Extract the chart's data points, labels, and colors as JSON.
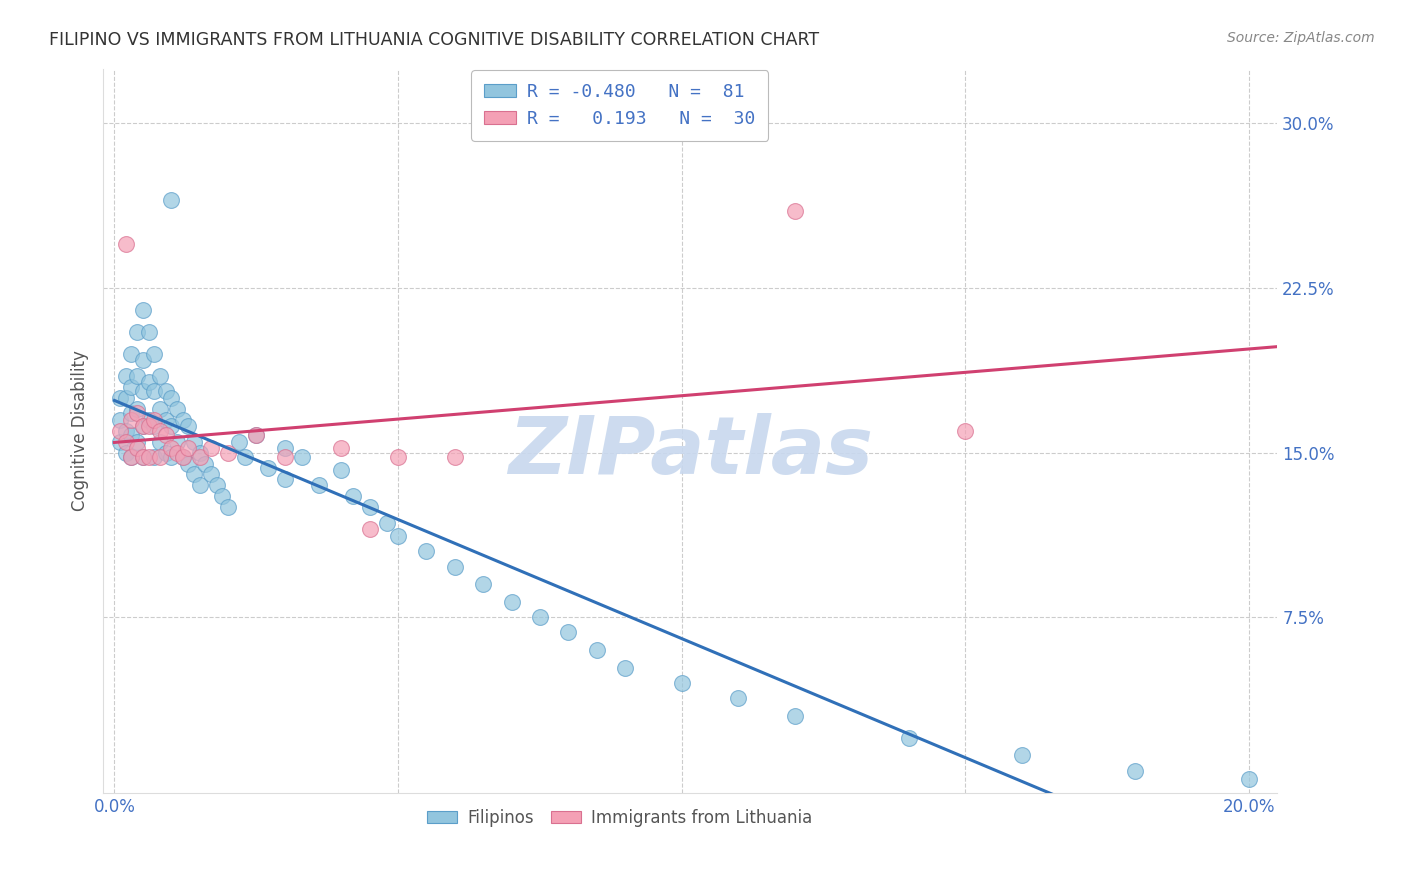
{
  "title": "FILIPINO VS IMMIGRANTS FROM LITHUANIA COGNITIVE DISABILITY CORRELATION CHART",
  "source": "Source: ZipAtlas.com",
  "ylabel": "Cognitive Disability",
  "xlim_min": -0.002,
  "xlim_max": 0.205,
  "ylim_min": -0.005,
  "ylim_max": 0.325,
  "ytick_vals": [
    0.075,
    0.15,
    0.225,
    0.3
  ],
  "ytick_labels": [
    "7.5%",
    "15.0%",
    "22.5%",
    "30.0%"
  ],
  "xtick_vals": [
    0.0,
    0.05,
    0.1,
    0.15,
    0.2
  ],
  "xtick_labels": [
    "0.0%",
    "",
    "",
    "",
    "20.0%"
  ],
  "filipino_color": "#92c5de",
  "filipino_edge": "#5b9ec9",
  "lithuania_color": "#f4a0b5",
  "lithuania_edge": "#d97090",
  "trend_filipino_color": "#3070b8",
  "trend_lithuania_color": "#d04070",
  "watermark_text": "ZIPatlas",
  "watermark_color": "#c8d8ee",
  "background_color": "#ffffff",
  "grid_color": "#cccccc",
  "title_color": "#333333",
  "axis_label_color": "#4472c4",
  "ylabel_color": "#555555",
  "source_color": "#888888",
  "legend_edge_color": "#bbbbbb",
  "legend_text_color": "#4472c4",
  "bottom_legend_text_color": "#555555",
  "fil_R": -0.48,
  "fil_N": 81,
  "lit_R": 0.193,
  "lit_N": 30,
  "filipinos_x": [
    0.001,
    0.001,
    0.001,
    0.002,
    0.002,
    0.002,
    0.002,
    0.003,
    0.003,
    0.003,
    0.003,
    0.003,
    0.004,
    0.004,
    0.004,
    0.004,
    0.005,
    0.005,
    0.005,
    0.005,
    0.005,
    0.006,
    0.006,
    0.006,
    0.007,
    0.007,
    0.007,
    0.007,
    0.008,
    0.008,
    0.008,
    0.009,
    0.009,
    0.009,
    0.01,
    0.01,
    0.01,
    0.011,
    0.011,
    0.012,
    0.012,
    0.013,
    0.013,
    0.014,
    0.014,
    0.015,
    0.015,
    0.016,
    0.017,
    0.018,
    0.019,
    0.02,
    0.022,
    0.023,
    0.025,
    0.027,
    0.03,
    0.03,
    0.033,
    0.036,
    0.04,
    0.042,
    0.045,
    0.048,
    0.05,
    0.055,
    0.06,
    0.065,
    0.07,
    0.075,
    0.08,
    0.085,
    0.09,
    0.1,
    0.11,
    0.12,
    0.14,
    0.16,
    0.18,
    0.2,
    0.01
  ],
  "filipinos_y": [
    0.175,
    0.165,
    0.155,
    0.185,
    0.175,
    0.16,
    0.15,
    0.195,
    0.18,
    0.168,
    0.158,
    0.148,
    0.205,
    0.185,
    0.17,
    0.155,
    0.215,
    0.192,
    0.178,
    0.162,
    0.148,
    0.205,
    0.182,
    0.165,
    0.195,
    0.178,
    0.162,
    0.148,
    0.185,
    0.17,
    0.155,
    0.178,
    0.165,
    0.15,
    0.175,
    0.162,
    0.148,
    0.17,
    0.155,
    0.165,
    0.148,
    0.162,
    0.145,
    0.155,
    0.14,
    0.15,
    0.135,
    0.145,
    0.14,
    0.135,
    0.13,
    0.125,
    0.155,
    0.148,
    0.158,
    0.143,
    0.152,
    0.138,
    0.148,
    0.135,
    0.142,
    0.13,
    0.125,
    0.118,
    0.112,
    0.105,
    0.098,
    0.09,
    0.082,
    0.075,
    0.068,
    0.06,
    0.052,
    0.045,
    0.038,
    0.03,
    0.02,
    0.012,
    0.005,
    0.001,
    0.265
  ],
  "lithuania_x": [
    0.001,
    0.002,
    0.002,
    0.003,
    0.003,
    0.004,
    0.004,
    0.005,
    0.005,
    0.006,
    0.006,
    0.007,
    0.008,
    0.008,
    0.009,
    0.01,
    0.011,
    0.012,
    0.013,
    0.015,
    0.017,
    0.02,
    0.025,
    0.03,
    0.04,
    0.045,
    0.05,
    0.06,
    0.12,
    0.15
  ],
  "lithuania_y": [
    0.16,
    0.245,
    0.155,
    0.165,
    0.148,
    0.168,
    0.152,
    0.162,
    0.148,
    0.162,
    0.148,
    0.165,
    0.16,
    0.148,
    0.158,
    0.152,
    0.15,
    0.148,
    0.152,
    0.148,
    0.152,
    0.15,
    0.158,
    0.148,
    0.152,
    0.115,
    0.148,
    0.148,
    0.26,
    0.16
  ]
}
